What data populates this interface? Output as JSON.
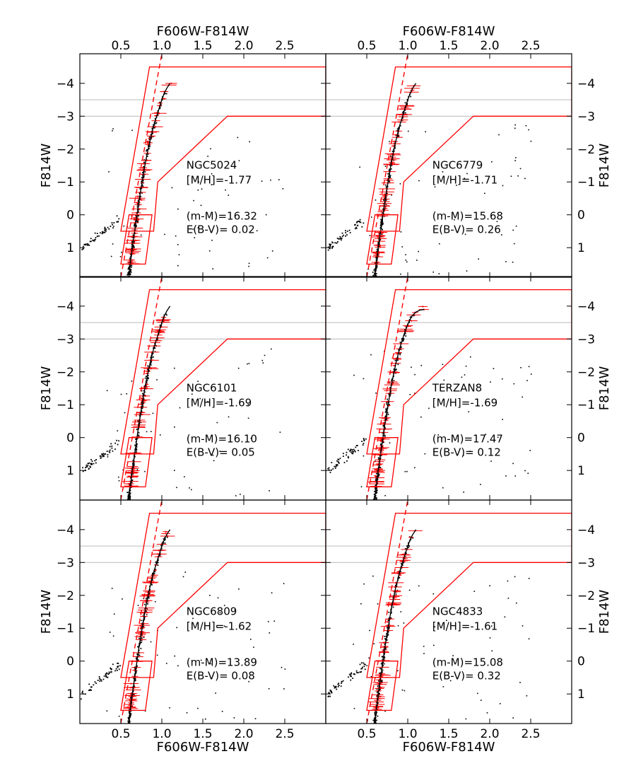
{
  "chart_data": {
    "type": "scatter",
    "figure": {
      "xlabel": "F606W-F814W",
      "ylabel": "F814W",
      "xlim": [
        0.0,
        3.0
      ],
      "ylim": [
        1.9,
        -4.9
      ],
      "x_ticks": [
        0.5,
        1.0,
        1.5,
        2.0,
        2.5
      ],
      "x_tick_labels": [
        "0.5",
        "1.0",
        "1.5",
        "2.0",
        "2.5"
      ],
      "y_ticks": [
        -4,
        -3,
        -2,
        -1,
        0,
        1
      ],
      "y_tick_labels": [
        "−4",
        "−3",
        "−2",
        "−1",
        "0",
        "1"
      ],
      "hlines": [
        -3.5,
        -3.0
      ],
      "colors": {
        "isochrone": "#000000",
        "box": "#ff0000",
        "stars": "#000000",
        "selected": "#ff0000",
        "hline": "#c0c0c0"
      }
    },
    "selection_box_upper": [
      [
        0.5,
        0.5
      ],
      [
        0.9,
        0.5
      ],
      [
        0.95,
        -1.0
      ],
      [
        1.8,
        -3.0
      ],
      [
        3.0,
        -3.0
      ],
      [
        3.0,
        -4.5
      ],
      [
        0.85,
        -4.5
      ]
    ],
    "selection_box_lower": [
      [
        0.5,
        1.5
      ],
      [
        0.8,
        1.5
      ],
      [
        0.88,
        0.0
      ],
      [
        0.6,
        0.0
      ]
    ],
    "dashed_line": [
      [
        0.5,
        1.9
      ],
      [
        1.0,
        -4.9
      ]
    ],
    "panels": [
      {
        "name": "NGC5024",
        "mh": "[M/H]=-1.77",
        "dm": "(m-M)=16.32",
        "ebv": "E(B-V)= 0.02",
        "isochrone": {
          "x": [
            0.6,
            0.64,
            0.68,
            0.72,
            0.76,
            0.8,
            0.85,
            0.9,
            0.95,
            1.0,
            1.03,
            1.06,
            1.1
          ],
          "y": [
            1.8,
            1.0,
            0.3,
            -0.4,
            -1.0,
            -1.6,
            -2.2,
            -2.7,
            -3.1,
            -3.5,
            -3.7,
            -3.85,
            -4.0
          ]
        }
      },
      {
        "name": "NGC6779",
        "mh": "[M/H]=-1.71",
        "dm": "(m-M)=15.68",
        "ebv": "E(B-V)= 0.26",
        "isochrone": {
          "x": [
            0.6,
            0.64,
            0.68,
            0.72,
            0.76,
            0.8,
            0.85,
            0.9,
            0.95,
            1.0,
            1.03,
            1.06,
            1.1
          ],
          "y": [
            1.8,
            1.0,
            0.3,
            -0.4,
            -1.0,
            -1.6,
            -2.2,
            -2.7,
            -3.1,
            -3.5,
            -3.7,
            -3.85,
            -4.0
          ]
        }
      },
      {
        "name": "NGC6101",
        "mh": "[M/H]=-1.69",
        "dm": "(m-M)=16.10",
        "ebv": "E(B-V)= 0.05",
        "isochrone": {
          "x": [
            0.6,
            0.64,
            0.68,
            0.72,
            0.76,
            0.8,
            0.85,
            0.9,
            0.95,
            1.0,
            1.03,
            1.06,
            1.1
          ],
          "y": [
            1.8,
            1.0,
            0.3,
            -0.4,
            -1.0,
            -1.6,
            -2.2,
            -2.7,
            -3.1,
            -3.5,
            -3.7,
            -3.85,
            -4.0
          ]
        }
      },
      {
        "name": "TERZAN8",
        "mh": "[M/H]=-1.69",
        "dm": "(m-M)=17.47",
        "ebv": "E(B-V)= 0.12",
        "isochrone": {
          "x": [
            0.6,
            0.64,
            0.68,
            0.72,
            0.76,
            0.8,
            0.85,
            0.9,
            0.95,
            1.0,
            1.05,
            1.1,
            1.15,
            1.2
          ],
          "y": [
            1.8,
            1.0,
            0.3,
            -0.4,
            -1.0,
            -1.6,
            -2.2,
            -2.7,
            -3.1,
            -3.45,
            -3.7,
            -3.82,
            -3.88,
            -3.9
          ]
        }
      },
      {
        "name": "NGC6809",
        "mh": "[M/H]=-1.62",
        "dm": "(m-M)=13.89",
        "ebv": "E(B-V)= 0.08",
        "isochrone": {
          "x": [
            0.6,
            0.64,
            0.68,
            0.72,
            0.76,
            0.8,
            0.85,
            0.9,
            0.95,
            1.0,
            1.03,
            1.06,
            1.1
          ],
          "y": [
            1.8,
            1.0,
            0.3,
            -0.4,
            -1.0,
            -1.6,
            -2.2,
            -2.7,
            -3.1,
            -3.5,
            -3.7,
            -3.85,
            -4.0
          ]
        }
      },
      {
        "name": "NGC4833",
        "mh": "[M/H]=-1.61",
        "dm": "(m-M)=15.08",
        "ebv": "E(B-V)= 0.32",
        "isochrone": {
          "x": [
            0.6,
            0.64,
            0.68,
            0.72,
            0.76,
            0.8,
            0.85,
            0.9,
            0.95,
            1.0,
            1.03,
            1.06,
            1.1
          ],
          "y": [
            1.8,
            1.0,
            0.3,
            -0.4,
            -1.0,
            -1.6,
            -2.2,
            -2.7,
            -3.1,
            -3.5,
            -3.7,
            -3.85,
            -4.0
          ]
        }
      }
    ]
  }
}
